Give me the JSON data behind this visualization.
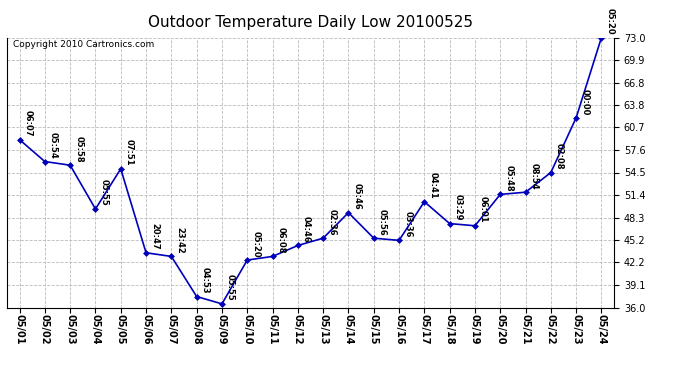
{
  "title": "Outdoor Temperature Daily Low 20100525",
  "copyright": "Copyright 2010 Cartronics.com",
  "x_labels": [
    "05/01",
    "05/02",
    "05/03",
    "05/04",
    "05/05",
    "05/06",
    "05/07",
    "05/08",
    "05/09",
    "05/10",
    "05/11",
    "05/12",
    "05/13",
    "05/14",
    "05/15",
    "05/16",
    "05/17",
    "05/18",
    "05/19",
    "05/20",
    "05/21",
    "05/22",
    "05/23",
    "05/24"
  ],
  "y_values": [
    59.0,
    56.0,
    55.5,
    49.5,
    55.0,
    43.5,
    43.0,
    37.5,
    36.5,
    42.5,
    43.0,
    44.5,
    45.5,
    49.0,
    45.5,
    45.2,
    50.5,
    47.5,
    47.2,
    51.5,
    51.8,
    54.5,
    62.0,
    73.0
  ],
  "point_labels": [
    "06:07",
    "05:54",
    "05:58",
    "05:55",
    "07:51",
    "20:47",
    "23:42",
    "04:53",
    "05:55",
    "05:20",
    "06:08",
    "04:46",
    "02:36",
    "05:46",
    "05:56",
    "03:36",
    "04:41",
    "03:29",
    "06:01",
    "05:48",
    "08:54",
    "02:08",
    "00:00",
    "05:20"
  ],
  "ylim": [
    36.0,
    73.0
  ],
  "yticks": [
    36.0,
    39.1,
    42.2,
    45.2,
    48.3,
    51.4,
    54.5,
    57.6,
    60.7,
    63.8,
    66.8,
    69.9,
    73.0
  ],
  "line_color": "#0000bb",
  "marker_color": "#0000bb",
  "bg_color": "#ffffff",
  "grid_color": "#bbbbbb",
  "title_fontsize": 11,
  "label_fontsize": 6,
  "tick_fontsize": 7,
  "copyright_fontsize": 6.5
}
